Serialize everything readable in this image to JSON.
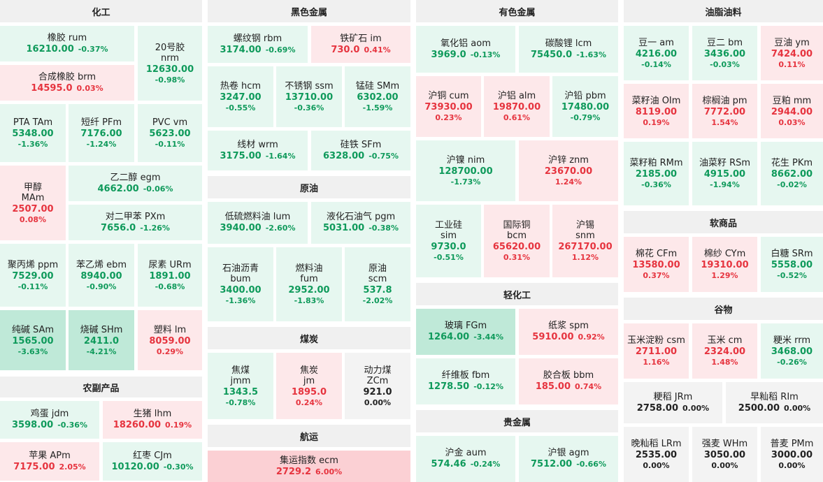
{
  "sections": [
    {
      "title": "化工"
    },
    {
      "title": "黑色金属"
    },
    {
      "title": "有色金属"
    },
    {
      "title": "油脂油料"
    },
    {
      "title": "农副产品"
    },
    {
      "title": "原油"
    },
    {
      "title": "煤炭"
    },
    {
      "title": "航运"
    },
    {
      "title": "轻化工"
    },
    {
      "title": "贵金属"
    },
    {
      "title": "软商品"
    },
    {
      "title": "谷物"
    }
  ],
  "tiles": [
    {
      "name": "橡胶 rum",
      "price": "16210.00",
      "pct": "-0.37%",
      "tone": "g1"
    },
    {
      "name": "合成橡胶 brm",
      "price": "14595.0",
      "pct": "0.03%",
      "tone": "r1"
    },
    {
      "name": "20号胶",
      "name2": "nrm",
      "price": "12630.00",
      "pct": "-0.98%",
      "tone": "g1"
    },
    {
      "name": "PTA TAm",
      "price": "5348.00",
      "pct": "-1.36%",
      "tone": "g1"
    },
    {
      "name": "短纤 PFm",
      "price": "7176.00",
      "pct": "-1.24%",
      "tone": "g1"
    },
    {
      "name": "PVC vm",
      "price": "5623.00",
      "pct": "-0.11%",
      "tone": "g1"
    },
    {
      "name": "甲醇",
      "name2": "MAm",
      "price": "2507.00",
      "pct": "0.08%",
      "tone": "r1"
    },
    {
      "name": "乙二醇 egm",
      "price": "4662.00",
      "pct": "-0.06%",
      "tone": "g1"
    },
    {
      "name": "对二甲苯 PXm",
      "price": "7656.0",
      "pct": "-1.26%",
      "tone": "g1"
    },
    {
      "name": "聚丙烯 ppm",
      "price": "7529.00",
      "pct": "-0.11%",
      "tone": "g1"
    },
    {
      "name": "苯乙烯 ebm",
      "price": "8940.00",
      "pct": "-0.90%",
      "tone": "g1"
    },
    {
      "name": "尿素 URm",
      "price": "1891.00",
      "pct": "-0.68%",
      "tone": "g1"
    },
    {
      "name": "纯碱 SAm",
      "price": "1565.00",
      "pct": "-3.63%",
      "tone": "g2"
    },
    {
      "name": "烧碱 SHm",
      "price": "2411.0",
      "pct": "-4.21%",
      "tone": "g2"
    },
    {
      "name": "塑料 lm",
      "price": "8059.00",
      "pct": "0.29%",
      "tone": "r1"
    },
    {
      "name": "鸡蛋 jdm",
      "price": "3598.00",
      "pct": "-0.36%",
      "tone": "g1"
    },
    {
      "name": "生猪 lhm",
      "price": "18260.00",
      "pct": "0.19%",
      "tone": "r1"
    },
    {
      "name": "苹果 APm",
      "price": "7175.00",
      "pct": "2.05%",
      "tone": "r1"
    },
    {
      "name": "红枣 CJm",
      "price": "10120.00",
      "pct": "-0.30%",
      "tone": "g1"
    },
    {
      "name": "螺纹钢 rbm",
      "price": "3174.00",
      "pct": "-0.69%",
      "tone": "g1"
    },
    {
      "name": "铁矿石 im",
      "price": "730.0",
      "pct": "0.41%",
      "tone": "r1"
    },
    {
      "name": "热卷 hcm",
      "price": "3247.00",
      "pct": "-0.55%",
      "tone": "g1"
    },
    {
      "name": "不锈钢 ssm",
      "price": "13710.00",
      "pct": "-0.36%",
      "tone": "g1"
    },
    {
      "name": "锰硅 SMm",
      "price": "6302.00",
      "pct": "-1.59%",
      "tone": "g1"
    },
    {
      "name": "线材 wrm",
      "price": "3175.00",
      "pct": "-1.64%",
      "tone": "g1"
    },
    {
      "name": "硅铁 SFm",
      "price": "6328.00",
      "pct": "-0.75%",
      "tone": "g1"
    },
    {
      "name": "低硫燃料油 lum",
      "price": "3940.00",
      "pct": "-2.60%",
      "tone": "g1"
    },
    {
      "name": "液化石油气 pgm",
      "price": "5031.00",
      "pct": "-0.38%",
      "tone": "g1"
    },
    {
      "name": "石油沥青",
      "name2": "bum",
      "price": "3400.00",
      "pct": "-1.36%",
      "tone": "g1"
    },
    {
      "name": "燃料油",
      "name2": "fum",
      "price": "2952.00",
      "pct": "-1.83%",
      "tone": "g1"
    },
    {
      "name": "原油",
      "name2": "scm",
      "price": "537.8",
      "pct": "-2.02%",
      "tone": "g1"
    },
    {
      "name": "焦煤",
      "name2": "jmm",
      "price": "1343.5",
      "pct": "-0.78%",
      "tone": "g1"
    },
    {
      "name": "焦炭",
      "name2": "jm",
      "price": "1895.0",
      "pct": "0.24%",
      "tone": "r1"
    },
    {
      "name": "动力煤",
      "name2": "ZCm",
      "price": "921.0",
      "pct": "0.00%",
      "tone": "n"
    },
    {
      "name": "集运指数 ecm",
      "price": "2729.2",
      "pct": "6.00%",
      "tone": "r2"
    },
    {
      "name": "氧化铝 aom",
      "price": "3969.0",
      "pct": "-0.13%",
      "tone": "g1"
    },
    {
      "name": "碳酸锂 lcm",
      "price": "75450.0",
      "pct": "-1.63%",
      "tone": "g1"
    },
    {
      "name": "沪铜 cum",
      "price": "73930.00",
      "pct": "0.23%",
      "tone": "r1"
    },
    {
      "name": "沪铝 alm",
      "price": "19870.00",
      "pct": "0.61%",
      "tone": "r1"
    },
    {
      "name": "沪铅 pbm",
      "price": "17480.00",
      "pct": "-0.79%",
      "tone": "g1"
    },
    {
      "name": "沪镍 nim",
      "price": "128700.00",
      "pct": "-1.73%",
      "tone": "g1"
    },
    {
      "name": "沪锌 znm",
      "price": "23670.00",
      "pct": "1.24%",
      "tone": "r1"
    },
    {
      "name": "工业硅",
      "name2": "sim",
      "price": "9730.0",
      "pct": "-0.51%",
      "tone": "g1"
    },
    {
      "name": "国际铜",
      "name2": "bcm",
      "price": "65620.00",
      "pct": "0.31%",
      "tone": "r1"
    },
    {
      "name": "沪锡",
      "name2": "snm",
      "price": "267170.00",
      "pct": "1.12%",
      "tone": "r1"
    },
    {
      "name": "玻璃 FGm",
      "price": "1264.00",
      "pct": "-3.44%",
      "tone": "g2"
    },
    {
      "name": "纸浆 spm",
      "price": "5910.00",
      "pct": "0.92%",
      "tone": "r1"
    },
    {
      "name": "纤维板 fbm",
      "price": "1278.50",
      "pct": "-0.12%",
      "tone": "g1"
    },
    {
      "name": "胶合板 bbm",
      "price": "185.00",
      "pct": "0.74%",
      "tone": "r1"
    },
    {
      "name": "沪金 aum",
      "price": "574.46",
      "pct": "-0.24%",
      "tone": "g1"
    },
    {
      "name": "沪银 agm",
      "price": "7512.00",
      "pct": "-0.66%",
      "tone": "g1"
    },
    {
      "name": "豆一 am",
      "price": "4216.00",
      "pct": "-0.14%",
      "tone": "g1"
    },
    {
      "name": "豆二 bm",
      "price": "3436.00",
      "pct": "-0.03%",
      "tone": "g1"
    },
    {
      "name": "豆油 ym",
      "price": "7424.00",
      "pct": "0.11%",
      "tone": "r1"
    },
    {
      "name": "菜籽油 OIm",
      "price": "8119.00",
      "pct": "0.19%",
      "tone": "r1"
    },
    {
      "name": "棕榈油 pm",
      "price": "7772.00",
      "pct": "1.54%",
      "tone": "r1"
    },
    {
      "name": "豆粕 mm",
      "price": "2944.00",
      "pct": "0.03%",
      "tone": "r1"
    },
    {
      "name": "菜籽粕 RMm",
      "price": "2185.00",
      "pct": "-0.36%",
      "tone": "g1"
    },
    {
      "name": "油菜籽 RSm",
      "price": "4915.00",
      "pct": "-1.94%",
      "tone": "g1"
    },
    {
      "name": "花生 PKm",
      "price": "8662.00",
      "pct": "-0.02%",
      "tone": "g1"
    },
    {
      "name": "棉花 CFm",
      "price": "13580.00",
      "pct": "0.37%",
      "tone": "r1"
    },
    {
      "name": "棉纱 CYm",
      "price": "19310.00",
      "pct": "1.29%",
      "tone": "r1"
    },
    {
      "name": "白糖 SRm",
      "price": "5558.00",
      "pct": "-0.52%",
      "tone": "g1"
    },
    {
      "name": "玉米淀粉 csm",
      "price": "2711.00",
      "pct": "1.16%",
      "tone": "r1"
    },
    {
      "name": "玉米 cm",
      "price": "2324.00",
      "pct": "1.48%",
      "tone": "r1"
    },
    {
      "name": "粳米 rrm",
      "price": "3468.00",
      "pct": "-0.26%",
      "tone": "g1"
    },
    {
      "name": "粳稻 JRm",
      "price": "2758.00",
      "pct": "0.00%",
      "tone": "n"
    },
    {
      "name": "早籼稻 RIm",
      "price": "2500.00",
      "pct": "0.00%",
      "tone": "n"
    },
    {
      "name": "晚籼稻 LRm",
      "price": "2535.00",
      "pct": "0.00%",
      "tone": "n"
    },
    {
      "name": "强麦 WHm",
      "price": "3050.00",
      "pct": "0.00%",
      "tone": "n"
    },
    {
      "name": "普麦 PMm",
      "price": "3000.00",
      "pct": "0.00%",
      "tone": "n"
    }
  ]
}
